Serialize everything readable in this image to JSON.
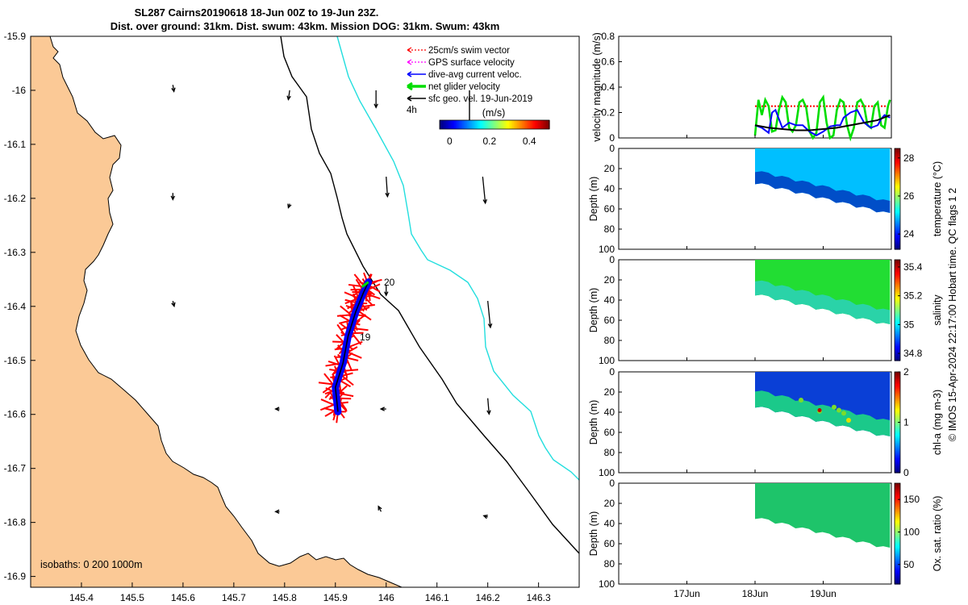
{
  "title_line1": "SL287 Cairns20190618 18-Jun 00Z to 19-Jun 23Z.",
  "title_line2": "Dist. over ground: 31km. Dist. swum: 43km. Mission DOG: 31km. Swum: 43km",
  "side_note": "© IMOS 15-Apr-2024 22:17:00 Hobart time. QC flags 1  2",
  "chart_data": [
    {
      "type": "scatter",
      "name": "map",
      "x_ticks": [
        145.4,
        145.5,
        145.6,
        145.7,
        145.8,
        145.9,
        146,
        146.1,
        146.2,
        146.3
      ],
      "y_ticks": [
        -15.9,
        -16,
        -16.1,
        -16.2,
        -16.3,
        -16.4,
        -16.5,
        -16.6,
        -16.7,
        -16.8,
        -16.9
      ],
      "x_tick_labels": [
        "145.4",
        "145.5",
        "145.6",
        "145.7",
        "145.8",
        "145.9",
        "146",
        "146.1",
        "146.2",
        "146.3"
      ],
      "y_tick_labels": [
        "-15.9",
        "-16",
        "-16.1",
        "-16.2",
        "-16.3",
        "-16.4",
        "-16.5",
        "-16.6",
        "-16.7",
        "-16.8",
        "-16.9"
      ],
      "xlim": [
        145.3,
        146.38
      ],
      "ylim": [
        -16.92,
        -15.9
      ],
      "legend": {
        "placement": "top-right",
        "entries": [
          {
            "label": "25cm/s swim vector",
            "color": "#ff0000",
            "style": "dotted-arrow"
          },
          {
            "label": "GPS surface velocity",
            "color": "#ff00ff",
            "style": "dotted-arrow"
          },
          {
            "label": "dive-avg current veloc.",
            "color": "#0000ff",
            "style": "arrow"
          },
          {
            "label": "net glider velocity",
            "color": "#00dd00",
            "style": "thick-arrow"
          },
          {
            "label": "sfc geo. vel. 19-Jun-2019",
            "color": "#000000",
            "style": "arrow"
          }
        ]
      },
      "colorbar": {
        "label": "(m/s)",
        "ticks": [
          "0",
          "0.2",
          "0.4"
        ],
        "range": [
          -0.05,
          0.5
        ]
      },
      "scale_label": "4h",
      "isobaths_label": "isobaths: 0   200  1000m",
      "track_labels": [
        "20",
        "19"
      ],
      "glider_track": [
        [
          145.905,
          -16.595
        ],
        [
          145.9,
          -16.55
        ],
        [
          145.915,
          -16.505
        ],
        [
          145.925,
          -16.455
        ],
        [
          145.94,
          -16.41
        ],
        [
          145.955,
          -16.375
        ],
        [
          145.965,
          -16.355
        ]
      ],
      "geo_vectors": [
        {
          "lon": 145.58,
          "lat": -15.99,
          "u": 0.008,
          "v": -0.05
        },
        {
          "lon": 145.81,
          "lat": -16.0,
          "u": -0.01,
          "v": -0.07
        },
        {
          "lon": 145.98,
          "lat": -16.0,
          "u": 0.0,
          "v": -0.13
        },
        {
          "lon": 145.58,
          "lat": -16.19,
          "u": 0.0,
          "v": -0.05
        },
        {
          "lon": 145.81,
          "lat": -16.21,
          "u": -0.01,
          "v": -0.03
        },
        {
          "lon": 146.0,
          "lat": -16.16,
          "u": 0.01,
          "v": -0.15
        },
        {
          "lon": 146.19,
          "lat": -16.16,
          "u": 0.02,
          "v": -0.2
        },
        {
          "lon": 145.58,
          "lat": -16.39,
          "u": 0.01,
          "v": -0.04
        },
        {
          "lon": 146.0,
          "lat": -16.36,
          "u": 0.0,
          "v": -0.08
        },
        {
          "lon": 146.2,
          "lat": -16.39,
          "u": 0.02,
          "v": -0.2
        },
        {
          "lon": 146.2,
          "lat": -16.57,
          "u": 0.01,
          "v": -0.12
        },
        {
          "lon": 146.0,
          "lat": -16.59,
          "u": -0.04,
          "v": 0.0
        },
        {
          "lon": 145.79,
          "lat": -16.59,
          "u": -0.03,
          "v": 0.0
        },
        {
          "lon": 145.99,
          "lat": -16.78,
          "u": -0.02,
          "v": 0.04
        },
        {
          "lon": 145.79,
          "lat": -16.78,
          "u": -0.03,
          "v": 0.0
        },
        {
          "lon": 146.2,
          "lat": -16.79,
          "u": -0.03,
          "v": 0.01
        }
      ]
    },
    {
      "type": "line",
      "name": "velocity",
      "ylabel": "velocity magnitude (m/s)",
      "y_tick_labels": [
        "0",
        "0.2",
        "0.4",
        "0.6",
        "0.8"
      ],
      "ylim": [
        0,
        0.8
      ],
      "x_tick_labels": [
        "17Jun",
        "18Jun",
        "19Jun"
      ],
      "x_ticks_days": [
        17,
        18,
        19
      ],
      "xlim_days": [
        16,
        20
      ],
      "series": [
        {
          "color": "#ff0000",
          "style": "dotted",
          "x": [
            18.0,
            18.4,
            18.8,
            19.2,
            19.6,
            19.98
          ],
          "y": [
            0.25,
            0.25,
            0.25,
            0.25,
            0.25,
            0.25
          ]
        },
        {
          "color": "#00dd00",
          "x": [
            18.0,
            18.05,
            18.1,
            18.15,
            18.2,
            18.25,
            18.3,
            18.35,
            18.4,
            18.45,
            18.5,
            18.55,
            18.6,
            18.65,
            18.7,
            18.75,
            18.8,
            18.85,
            18.9,
            18.95,
            19.0,
            19.05,
            19.1,
            19.15,
            19.2,
            19.25,
            19.3,
            19.35,
            19.4,
            19.45,
            19.5,
            19.55,
            19.6,
            19.65,
            19.7,
            19.75,
            19.8,
            19.85,
            19.9,
            19.95,
            19.98
          ],
          "y": [
            0.02,
            0.3,
            0.18,
            0.3,
            0.25,
            0.05,
            0.06,
            0.22,
            0.32,
            0.28,
            0.08,
            0.05,
            0.1,
            0.28,
            0.3,
            0.24,
            0.05,
            0.0,
            0.04,
            0.28,
            0.32,
            0.12,
            0.0,
            0.02,
            0.22,
            0.3,
            0.28,
            0.1,
            0.0,
            0.08,
            0.28,
            0.3,
            0.25,
            0.1,
            0.08,
            0.25,
            0.28,
            0.1,
            0.08,
            0.25,
            0.3
          ]
        },
        {
          "color": "#0000ff",
          "x": [
            18.0,
            18.1,
            18.2,
            18.25,
            18.3,
            18.35,
            18.4,
            18.5,
            18.6,
            18.7,
            18.8,
            18.9,
            19.0,
            19.1,
            19.2,
            19.25,
            19.3,
            19.4,
            19.5,
            19.6,
            19.7,
            19.8,
            19.85,
            19.9,
            19.98
          ],
          "y": [
            0.1,
            0.08,
            0.04,
            0.2,
            0.22,
            0.15,
            0.08,
            0.12,
            0.1,
            0.1,
            0.05,
            0.02,
            0.05,
            0.09,
            0.1,
            0.1,
            0.16,
            0.2,
            0.22,
            0.12,
            0.08,
            0.1,
            0.15,
            0.18,
            0.16
          ]
        },
        {
          "color": "#000000",
          "x": [
            18.0,
            18.2,
            18.4,
            18.6,
            18.8,
            19.0,
            19.2,
            19.4,
            19.6,
            19.8,
            19.98
          ],
          "y": [
            0.1,
            0.08,
            0.07,
            0.06,
            0.06,
            0.07,
            0.08,
            0.1,
            0.12,
            0.14,
            0.18
          ]
        }
      ]
    },
    {
      "type": "heatmap",
      "name": "temperature",
      "ylabel": "Depth (m)",
      "y_tick_labels": [
        "0",
        "20",
        "40",
        "60",
        "80",
        "100"
      ],
      "ylim": [
        0,
        100
      ],
      "cbar_label": "temperature (°C)",
      "cbar_ticks": [
        "24",
        "26",
        "28"
      ],
      "cbar_range": [
        23.2,
        28.5
      ],
      "bottom_profile": {
        "x": [
          18.0,
          19.98
        ],
        "y": [
          34,
          65
        ]
      },
      "layers": [
        {
          "color": "#00bfff"
        },
        {
          "color": "#004ec8",
          "top_offset_m": 12
        }
      ]
    },
    {
      "type": "heatmap",
      "name": "salinity",
      "ylabel": "Depth (m)",
      "y_tick_labels": [
        "0",
        "20",
        "40",
        "60",
        "80",
        "100"
      ],
      "ylim": [
        0,
        100
      ],
      "cbar_label": "salinity",
      "cbar_ticks": [
        "34.8",
        "35",
        "35.2",
        "35.4"
      ],
      "cbar_range": [
        34.75,
        35.45
      ],
      "bottom_profile": {
        "x": [
          18.0,
          19.98
        ],
        "y": [
          34,
          65
        ]
      },
      "layers": [
        {
          "color": "#22dd33"
        },
        {
          "color": "#2ad3a8",
          "top_offset_m": 14
        }
      ]
    },
    {
      "type": "heatmap",
      "name": "chl-a",
      "ylabel": "Depth (m)",
      "y_tick_labels": [
        "0",
        "20",
        "40",
        "60",
        "80",
        "100"
      ],
      "ylim": [
        0,
        100
      ],
      "cbar_label": "chl-a (mg m-3)",
      "cbar_ticks": [
        "0",
        "1",
        "2"
      ],
      "cbar_range": [
        0,
        2
      ],
      "bottom_profile": {
        "x": [
          18.0,
          19.98
        ],
        "y": [
          34,
          65
        ]
      },
      "layers": [
        {
          "color": "#0a3fd6"
        },
        {
          "color": "#1bc98a",
          "top_offset_m": 16
        }
      ]
    },
    {
      "type": "heatmap",
      "name": "oxygen",
      "ylabel": "Depth (m)",
      "y_tick_labels": [
        "0",
        "20",
        "40",
        "60",
        "80",
        "100"
      ],
      "ylim": [
        0,
        100
      ],
      "x_tick_labels": [
        "17Jun",
        "18Jun",
        "19Jun"
      ],
      "x_ticks_days": [
        17,
        18,
        19
      ],
      "xlim_days": [
        16,
        20
      ],
      "cbar_label": "Ox. sat. ratio (%)",
      "cbar_ticks": [
        "50",
        "100",
        "150"
      ],
      "cbar_range": [
        20,
        175
      ],
      "bottom_profile": {
        "x": [
          18.0,
          19.98
        ],
        "y": [
          34,
          65
        ]
      },
      "layers": [
        {
          "color": "#1ec46a"
        }
      ]
    }
  ]
}
